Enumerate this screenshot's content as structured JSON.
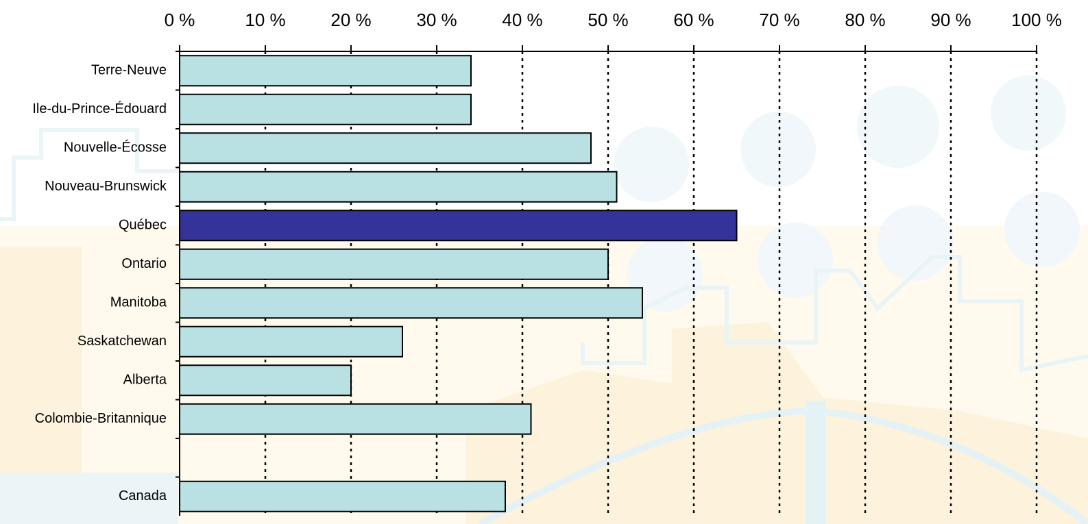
{
  "chart_data": {
    "type": "hbar",
    "categories": [
      "Terre-Neuve",
      "Ile-du-Prince-Édouard",
      "Nouvelle-Écosse",
      "Nouveau-Brunswick",
      "Québec",
      "Ontario",
      "Manitoba",
      "Saskatchewan",
      "Alberta",
      "Colombie-Britannique",
      null,
      "Canada"
    ],
    "values": [
      34,
      34,
      48,
      51,
      65,
      50,
      54,
      26,
      20,
      41,
      null,
      38
    ],
    "colors": [
      "#b9e0e3",
      "#b9e0e3",
      "#b9e0e3",
      "#b9e0e3",
      "#333399",
      "#b9e0e3",
      "#b9e0e3",
      "#b9e0e3",
      "#b9e0e3",
      "#b9e0e3",
      "#b9e0e3",
      "#b9e0e3"
    ],
    "xlim": [
      0,
      100
    ],
    "xticks": [
      {
        "value": 0,
        "label": "0 %"
      },
      {
        "value": 10,
        "label": "10 %"
      },
      {
        "value": 20,
        "label": "20 %"
      },
      {
        "value": 30,
        "label": "30 %"
      },
      {
        "value": 40,
        "label": "40 %"
      },
      {
        "value": 50,
        "label": "50 %"
      },
      {
        "value": 60,
        "label": "60 %"
      },
      {
        "value": 70,
        "label": "70 %"
      },
      {
        "value": 80,
        "label": "80 %"
      },
      {
        "value": 90,
        "label": "90 %"
      },
      {
        "value": 100,
        "label": "100 %"
      }
    ],
    "grid": true
  }
}
